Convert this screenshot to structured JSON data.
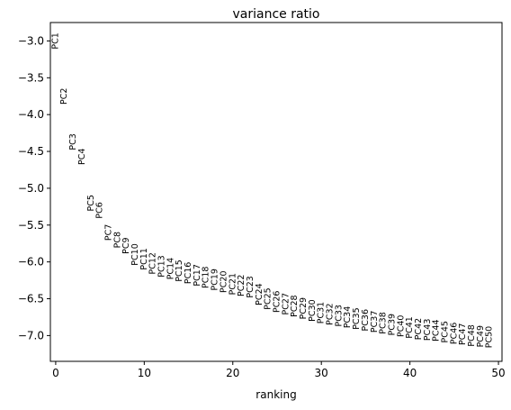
{
  "chart_data": {
    "type": "scatter",
    "title": "variance ratio",
    "xlabel": "ranking",
    "ylabel": "",
    "xlim": [
      -0.6,
      50.4
    ],
    "ylim": [
      -7.35,
      -2.75
    ],
    "xticks": [
      0,
      10,
      20,
      30,
      40,
      50
    ],
    "yticks": [
      -3.0,
      -3.5,
      -4.0,
      -4.5,
      -5.0,
      -5.5,
      -6.0,
      -6.5,
      -7.0
    ],
    "ytick_labels": [
      "−3.0",
      "−3.5",
      "−4.0",
      "−4.5",
      "−5.0",
      "−5.5",
      "−6.0",
      "−6.5",
      "−7.0"
    ],
    "grid": false,
    "points": [
      {
        "label": "PC1",
        "x": 0,
        "y": -3.0
      },
      {
        "label": "PC2",
        "x": 1,
        "y": -3.75
      },
      {
        "label": "PC3",
        "x": 2,
        "y": -4.37
      },
      {
        "label": "PC4",
        "x": 3,
        "y": -4.57
      },
      {
        "label": "PC5",
        "x": 4,
        "y": -5.2
      },
      {
        "label": "PC6",
        "x": 5,
        "y": -5.3
      },
      {
        "label": "PC7",
        "x": 6,
        "y": -5.6
      },
      {
        "label": "PC8",
        "x": 7,
        "y": -5.7
      },
      {
        "label": "PC9",
        "x": 8,
        "y": -5.78
      },
      {
        "label": "PC10",
        "x": 9,
        "y": -5.9
      },
      {
        "label": "PC11",
        "x": 10,
        "y": -5.96
      },
      {
        "label": "PC12",
        "x": 11,
        "y": -6.02
      },
      {
        "label": "PC13",
        "x": 12,
        "y": -6.06
      },
      {
        "label": "PC14",
        "x": 13,
        "y": -6.09
      },
      {
        "label": "PC15",
        "x": 14,
        "y": -6.12
      },
      {
        "label": "PC16",
        "x": 15,
        "y": -6.15
      },
      {
        "label": "PC17",
        "x": 16,
        "y": -6.18
      },
      {
        "label": "PC18",
        "x": 17,
        "y": -6.21
      },
      {
        "label": "PC19",
        "x": 18,
        "y": -6.24
      },
      {
        "label": "PC20",
        "x": 19,
        "y": -6.27
      },
      {
        "label": "PC21",
        "x": 20,
        "y": -6.3
      },
      {
        "label": "PC22",
        "x": 21,
        "y": -6.32
      },
      {
        "label": "PC23",
        "x": 22,
        "y": -6.34
      },
      {
        "label": "PC24",
        "x": 23,
        "y": -6.44
      },
      {
        "label": "PC25",
        "x": 24,
        "y": -6.5
      },
      {
        "label": "PC26",
        "x": 25,
        "y": -6.54
      },
      {
        "label": "PC27",
        "x": 26,
        "y": -6.57
      },
      {
        "label": "PC28",
        "x": 27,
        "y": -6.6
      },
      {
        "label": "PC29",
        "x": 28,
        "y": -6.63
      },
      {
        "label": "PC30",
        "x": 29,
        "y": -6.66
      },
      {
        "label": "PC31",
        "x": 30,
        "y": -6.69
      },
      {
        "label": "PC32",
        "x": 31,
        "y": -6.71
      },
      {
        "label": "PC33",
        "x": 32,
        "y": -6.73
      },
      {
        "label": "PC34",
        "x": 33,
        "y": -6.75
      },
      {
        "label": "PC35",
        "x": 34,
        "y": -6.77
      },
      {
        "label": "PC36",
        "x": 35,
        "y": -6.79
      },
      {
        "label": "PC37",
        "x": 36,
        "y": -6.81
      },
      {
        "label": "PC38",
        "x": 37,
        "y": -6.83
      },
      {
        "label": "PC39",
        "x": 38,
        "y": -6.85
      },
      {
        "label": "PC40",
        "x": 39,
        "y": -6.87
      },
      {
        "label": "PC41",
        "x": 40,
        "y": -6.89
      },
      {
        "label": "PC42",
        "x": 41,
        "y": -6.91
      },
      {
        "label": "PC43",
        "x": 42,
        "y": -6.92
      },
      {
        "label": "PC44",
        "x": 43,
        "y": -6.93
      },
      {
        "label": "PC45",
        "x": 44,
        "y": -6.95
      },
      {
        "label": "PC46",
        "x": 45,
        "y": -6.97
      },
      {
        "label": "PC47",
        "x": 46,
        "y": -6.98
      },
      {
        "label": "PC48",
        "x": 47,
        "y": -7.0
      },
      {
        "label": "PC49",
        "x": 48,
        "y": -7.01
      },
      {
        "label": "PC50",
        "x": 49,
        "y": -7.02
      }
    ]
  }
}
